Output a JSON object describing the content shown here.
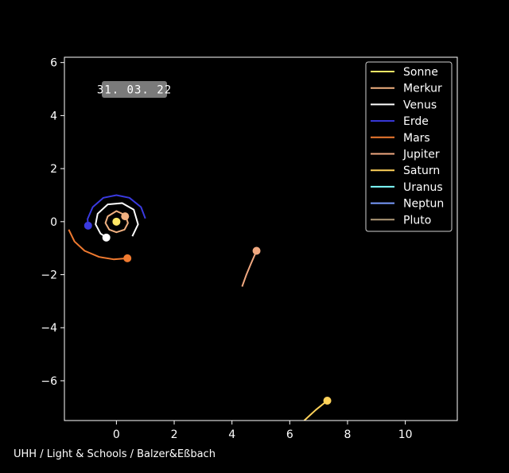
{
  "chart_data": {
    "type": "line",
    "date_label": "31. 03. 22",
    "xlim": [
      -1.8,
      11.8
    ],
    "ylim": [
      -7.5,
      6.2
    ],
    "xticks": [
      0,
      2,
      4,
      6,
      8,
      10
    ],
    "yticks": [
      6,
      4,
      2,
      0,
      -2,
      -4,
      -6
    ],
    "grid": false,
    "legend_position": "top-right",
    "series": [
      {
        "name": "Sonne",
        "color": "#ffe866",
        "trail": [],
        "position": [
          0.0,
          0.0
        ]
      },
      {
        "name": "Merkur",
        "color": "#f0b080",
        "trail": [
          [
            0.3,
            0.25
          ],
          [
            0.0,
            0.4
          ],
          [
            -0.3,
            0.2
          ],
          [
            -0.38,
            -0.05
          ],
          [
            -0.25,
            -0.3
          ],
          [
            0.0,
            -0.4
          ],
          [
            0.28,
            -0.3
          ],
          [
            0.4,
            -0.05
          ],
          [
            0.32,
            0.2
          ]
        ],
        "position": [
          0.3,
          0.2
        ]
      },
      {
        "name": "Venus",
        "color": "#ffffff",
        "trail": [
          [
            0.55,
            -0.55
          ],
          [
            0.75,
            -0.1
          ],
          [
            0.6,
            0.45
          ],
          [
            0.2,
            0.7
          ],
          [
            -0.3,
            0.65
          ],
          [
            -0.65,
            0.3
          ],
          [
            -0.72,
            -0.1
          ],
          [
            -0.55,
            -0.45
          ],
          [
            -0.35,
            -0.6
          ]
        ],
        "position": [
          -0.35,
          -0.6
        ]
      },
      {
        "name": "Erde",
        "color": "#3a3ae0",
        "trail": [
          [
            1.0,
            0.12
          ],
          [
            0.85,
            0.55
          ],
          [
            0.45,
            0.9
          ],
          [
            0.0,
            1.0
          ],
          [
            -0.45,
            0.9
          ],
          [
            -0.82,
            0.55
          ],
          [
            -1.0,
            0.1
          ],
          [
            -0.98,
            -0.15
          ]
        ],
        "position": [
          -0.98,
          -0.15
        ]
      },
      {
        "name": "Mars",
        "color": "#f07a30",
        "trail": [
          [
            -1.65,
            -0.3
          ],
          [
            -1.45,
            -0.75
          ],
          [
            -1.1,
            -1.1
          ],
          [
            -0.6,
            -1.33
          ],
          [
            -0.1,
            -1.42
          ],
          [
            0.38,
            -1.38
          ]
        ],
        "position": [
          0.38,
          -1.38
        ]
      },
      {
        "name": "Jupiter",
        "color": "#f0a880",
        "trail": [
          [
            4.35,
            -2.45
          ],
          [
            4.5,
            -2.0
          ],
          [
            4.65,
            -1.6
          ],
          [
            4.85,
            -1.1
          ]
        ],
        "position": [
          4.85,
          -1.1
        ]
      },
      {
        "name": "Saturn",
        "color": "#ffd25a",
        "trail": [
          [
            6.5,
            -7.5
          ],
          [
            6.9,
            -7.1
          ],
          [
            7.3,
            -6.75
          ]
        ],
        "position": [
          7.3,
          -6.75
        ]
      },
      {
        "name": "Uranus",
        "color": "#80ffff",
        "trail": [],
        "position": null
      },
      {
        "name": "Neptun",
        "color": "#7a9cff",
        "trail": [],
        "position": null
      },
      {
        "name": "Pluto",
        "color": "#b09a78",
        "trail": [],
        "position": null
      }
    ]
  },
  "credit": "UHH / Light & Schools / Balzer&Eßbach"
}
